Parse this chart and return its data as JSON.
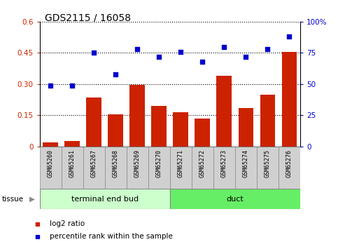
{
  "title": "GDS2115 / 16058",
  "samples": [
    "GSM65260",
    "GSM65261",
    "GSM65267",
    "GSM65268",
    "GSM65269",
    "GSM65270",
    "GSM65271",
    "GSM65272",
    "GSM65273",
    "GSM65274",
    "GSM65275",
    "GSM65276"
  ],
  "log2_ratio": [
    0.02,
    0.025,
    0.235,
    0.155,
    0.295,
    0.195,
    0.165,
    0.135,
    0.34,
    0.185,
    0.25,
    0.455
  ],
  "percentile_rank": [
    49,
    49,
    75,
    58,
    78,
    72,
    76,
    68,
    80,
    72,
    78,
    88
  ],
  "bar_color": "#cc2200",
  "dot_color": "#0000cc",
  "left_ylim": [
    0,
    0.6
  ],
  "right_ylim": [
    0,
    100
  ],
  "left_yticks": [
    0,
    0.15,
    0.3,
    0.45,
    0.6
  ],
  "right_yticks": [
    0,
    25,
    50,
    75,
    100
  ],
  "left_ytick_labels": [
    "0",
    "0.15",
    "0.30",
    "0.45",
    "0.6"
  ],
  "right_ytick_labels": [
    "0",
    "25",
    "50",
    "75",
    "100%"
  ],
  "tissue_groups": [
    {
      "label": "terminal end bud",
      "start": 0,
      "end": 6,
      "color": "#ccffcc"
    },
    {
      "label": "duct",
      "start": 6,
      "end": 12,
      "color": "#66ee66"
    }
  ],
  "tissue_label": "tissue",
  "legend_items": [
    {
      "label": "log2 ratio",
      "color": "#cc2200"
    },
    {
      "label": "percentile rank within the sample",
      "color": "#0000cc"
    }
  ],
  "grid_color": "black",
  "sample_bg_color": "#d0d0d0",
  "plot_bg": "white"
}
